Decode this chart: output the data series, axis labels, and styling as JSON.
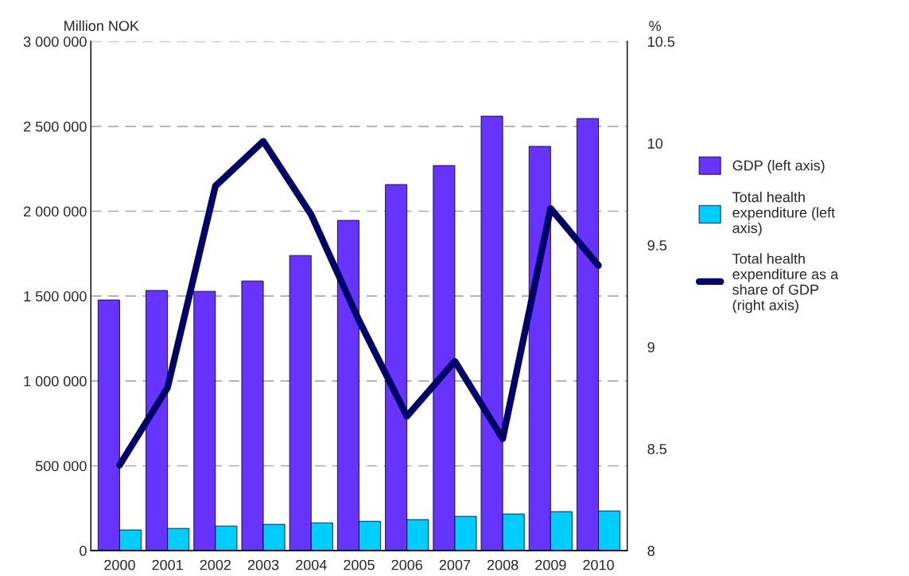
{
  "chart_data": {
    "type": "bar",
    "ylabel": "Million NOK",
    "y2label": "%",
    "categories": [
      "2000",
      "2001",
      "2002",
      "2003",
      "2004",
      "2005",
      "2006",
      "2007",
      "2008",
      "2009",
      "2010"
    ],
    "series": [
      {
        "name": "GDP (left axis)",
        "color": "#6633ff",
        "values": [
          1477000,
          1533000,
          1528000,
          1589000,
          1739000,
          1946000,
          2157000,
          2269000,
          2560000,
          2382000,
          2546000
        ]
      },
      {
        "name": "Total health expenditure (left axis)",
        "color": "#00ccff",
        "values": [
          122000,
          131000,
          145000,
          155000,
          164000,
          173000,
          183000,
          202000,
          216000,
          230000,
          234000
        ]
      },
      {
        "name": "Total health expenditure as a share of GDP (right axis)",
        "type": "line",
        "axis": "y2",
        "color": "#000066",
        "values": [
          8.42,
          8.8,
          9.79,
          10.01,
          9.65,
          9.13,
          8.66,
          8.93,
          8.55,
          9.68,
          9.4
        ]
      }
    ],
    "ylim": [
      0,
      3000000
    ],
    "yticks": [
      {
        "value": 0,
        "label": "0"
      },
      {
        "value": 500000,
        "label": "500 000"
      },
      {
        "value": 1000000,
        "label": "1 000 000"
      },
      {
        "value": 1500000,
        "label": "1 500 000"
      },
      {
        "value": 2000000,
        "label": "2 000 000"
      },
      {
        "value": 2500000,
        "label": "2 500 000"
      },
      {
        "value": 3000000,
        "label": "3 000 000"
      }
    ],
    "y2lim": [
      8,
      10.5
    ],
    "y2ticks": [
      8,
      8.5,
      9,
      9.5,
      10,
      10.5
    ],
    "grid": "y",
    "legend": "right",
    "line_style": "solid",
    "marker": "none"
  }
}
